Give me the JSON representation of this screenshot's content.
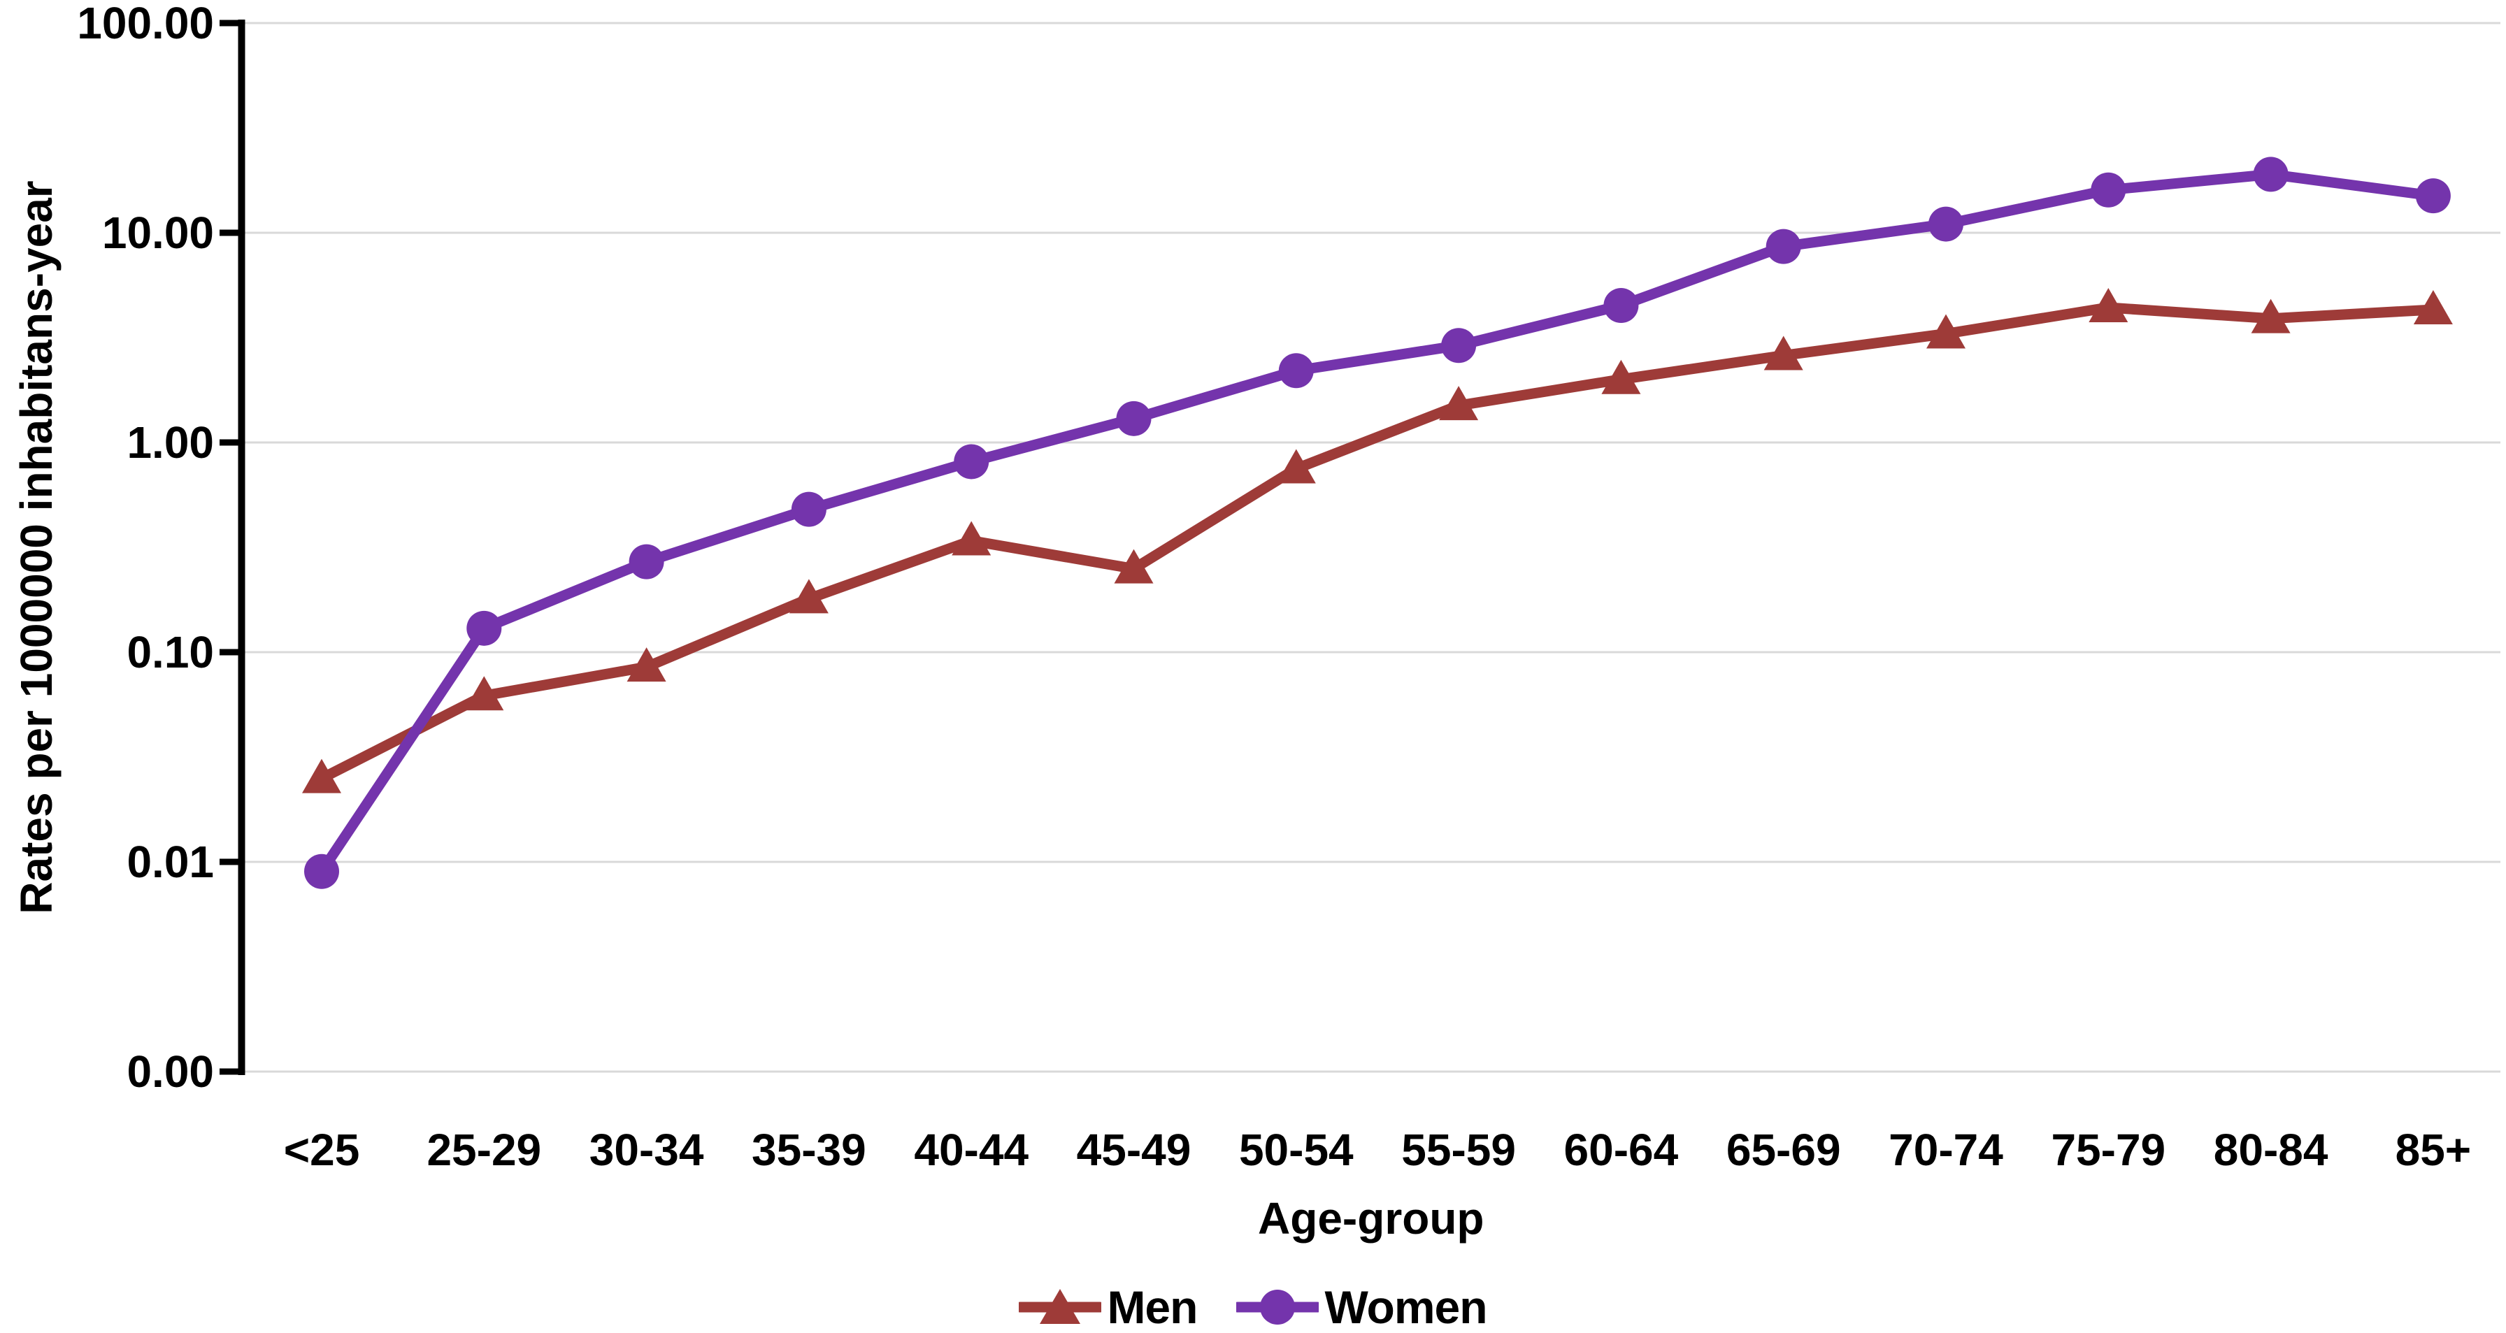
{
  "figure": {
    "background": "#FFFFFF",
    "note": "Log-scale line chart of rates by age group for men and women"
  },
  "chart_data": {
    "type": "line",
    "title": "",
    "categories": [
      "<25",
      "25-29",
      "30-34",
      "35-39",
      "40-44",
      "45-49",
      "50-54",
      "55-59",
      "60-64",
      "65-69",
      "70-74",
      "75-79",
      "80-84",
      "85+"
    ],
    "series": [
      {
        "name": "Men",
        "color": "#9E3B38",
        "marker": "triangle",
        "values": [
          0.025,
          0.062,
          0.085,
          0.18,
          0.34,
          0.25,
          0.75,
          1.5,
          2.0,
          2.6,
          3.3,
          4.4,
          3.9,
          4.3
        ]
      },
      {
        "name": "Women",
        "color": "#7434AC",
        "marker": "circle",
        "values": [
          0.009,
          0.13,
          0.27,
          0.48,
          0.81,
          1.3,
          2.2,
          2.9,
          4.5,
          8.6,
          11.0,
          16.0,
          19.0,
          15.0
        ]
      }
    ],
    "xlabel": "Age-group",
    "ylabel": "Rates per 1000000 inhabitans-year",
    "x_scale": "categorical",
    "y_scale": "log",
    "ylim": [
      0.001,
      100
    ],
    "y_ticks": [
      100,
      10,
      1,
      0.1,
      0.01,
      0.001
    ],
    "y_tick_labels": [
      "100.00",
      "10.00",
      "1.00",
      "0.10",
      "0.01",
      "0.00"
    ],
    "grid": "horizontal",
    "gridline_color": "#D9D9D9",
    "axis_color": "#000000",
    "text_color": "#000000",
    "legend_position": "bottom-center"
  },
  "legend": {
    "items": [
      {
        "label": "Men"
      },
      {
        "label": "Women"
      }
    ]
  }
}
